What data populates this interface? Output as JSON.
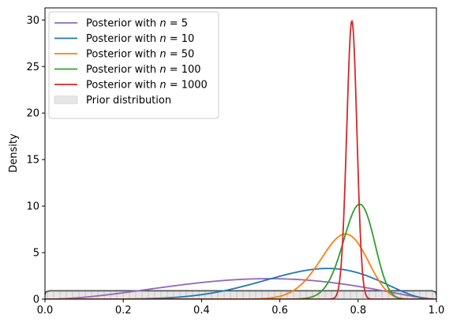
{
  "chart_data": {
    "type": "line",
    "title": "",
    "xlabel": "",
    "ylabel": "Density",
    "xlim": [
      0,
      1
    ],
    "ylim": [
      0,
      31.3
    ],
    "xticks": [
      "0.0",
      "0.2",
      "0.4",
      "0.6",
      "0.8",
      "1.0"
    ],
    "yticks": [
      "0",
      "5",
      "10",
      "15",
      "20",
      "25",
      "30"
    ],
    "grid": false,
    "legend_position": "top-left",
    "series": [
      {
        "name": "Posterior with n = 5",
        "legend_label": "Posterior with",
        "legend_n": "5",
        "color": "#9467bd",
        "beta": [
          3.0,
          2.5
        ],
        "peak": 2.2,
        "peak_x": 0.57
      },
      {
        "name": "Posterior with n = 10",
        "legend_label": "Posterior with",
        "legend_n": "10",
        "color": "#1f77b4",
        "beta": [
          7.5,
          3.5
        ],
        "peak": 3.3,
        "peak_x": 0.74
      },
      {
        "name": "Posterior with n = 50",
        "legend_label": "Posterior with",
        "legend_n": "50",
        "color": "#ff7f0e",
        "beta": [
          39.0,
          12.5
        ],
        "peak": 7.0,
        "peak_x": 0.765
      },
      {
        "name": "Posterior with n = 100",
        "legend_label": "Posterior with",
        "legend_n": "100",
        "color": "#2ca02c",
        "beta": [
          81.0,
          20.5
        ],
        "peak": 10.2,
        "peak_x": 0.802
      },
      {
        "name": "Posterior with n = 1000",
        "legend_label": "Posterior with",
        "legend_n": "1000",
        "color": "#d62728",
        "beta": [
          785.0,
          217.0
        ],
        "peak": 29.9,
        "peak_x": 0.784
      }
    ],
    "prior": {
      "name": "Prior distribution",
      "line_color": "#555555",
      "fill_color": "#e6e6e6",
      "beta": [
        1.2,
        1.2
      ],
      "value_at_0": 0.4,
      "plateau": 0.9
    }
  }
}
